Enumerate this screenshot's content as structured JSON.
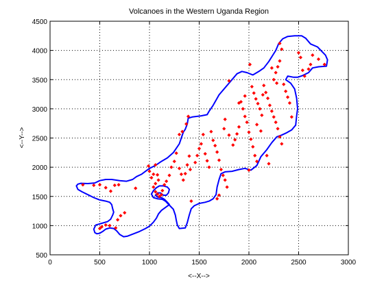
{
  "chart_data": {
    "type": "scatter",
    "title": "Volcanoes in the Western Uganda Region",
    "xlabel": "<--X-->",
    "ylabel": "<--Y-->",
    "xlim": [
      0,
      3000
    ],
    "ylim": [
      500,
      4500
    ],
    "xticks": [
      0,
      500,
      1000,
      1500,
      2000,
      2500,
      3000
    ],
    "yticks": [
      500,
      1000,
      1500,
      2000,
      2500,
      3000,
      3500,
      4000,
      4500
    ],
    "xtick_labels": [
      "0",
      "500",
      "1000",
      "1500",
      "2000",
      "2500",
      "3000"
    ],
    "ytick_labels": [
      "500",
      "1000",
      "1500",
      "2000",
      "2500",
      "3000",
      "3500",
      "4000",
      "4500"
    ],
    "grid": true,
    "colors": {
      "boundary": "#0000ff",
      "points": "#ff0000",
      "grid": "#000000"
    },
    "boundary": [
      [
        265,
        1680
      ],
      [
        280,
        1710
      ],
      [
        310,
        1725
      ],
      [
        380,
        1720
      ],
      [
        450,
        1730
      ],
      [
        500,
        1770
      ],
      [
        560,
        1790
      ],
      [
        620,
        1790
      ],
      [
        700,
        1770
      ],
      [
        770,
        1760
      ],
      [
        830,
        1790
      ],
      [
        870,
        1840
      ],
      [
        920,
        1880
      ],
      [
        960,
        1930
      ],
      [
        1000,
        1980
      ],
      [
        1060,
        2030
      ],
      [
        1120,
        2100
      ],
      [
        1180,
        2160
      ],
      [
        1240,
        2250
      ],
      [
        1300,
        2400
      ],
      [
        1340,
        2600
      ],
      [
        1360,
        2650
      ],
      [
        1380,
        2740
      ],
      [
        1390,
        2840
      ],
      [
        1430,
        2860
      ],
      [
        1520,
        2880
      ],
      [
        1580,
        2900
      ],
      [
        1600,
        2960
      ],
      [
        1640,
        3060
      ],
      [
        1700,
        3240
      ],
      [
        1760,
        3360
      ],
      [
        1820,
        3480
      ],
      [
        1880,
        3600
      ],
      [
        1930,
        3640
      ],
      [
        1980,
        3620
      ],
      [
        2040,
        3580
      ],
      [
        2100,
        3640
      ],
      [
        2150,
        3700
      ],
      [
        2200,
        3810
      ],
      [
        2270,
        4000
      ],
      [
        2300,
        4120
      ],
      [
        2340,
        4200
      ],
      [
        2390,
        4240
      ],
      [
        2460,
        4250
      ],
      [
        2530,
        4250
      ],
      [
        2570,
        4210
      ],
      [
        2620,
        4110
      ],
      [
        2690,
        4060
      ],
      [
        2770,
        3920
      ],
      [
        2790,
        3840
      ],
      [
        2780,
        3730
      ],
      [
        2700,
        3720
      ],
      [
        2640,
        3700
      ],
      [
        2600,
        3620
      ],
      [
        2540,
        3570
      ],
      [
        2490,
        3540
      ],
      [
        2450,
        3540
      ],
      [
        2390,
        3560
      ],
      [
        2370,
        3500
      ],
      [
        2420,
        3440
      ],
      [
        2460,
        3340
      ],
      [
        2480,
        3180
      ],
      [
        2490,
        3000
      ],
      [
        2480,
        2880
      ],
      [
        2470,
        2720
      ],
      [
        2430,
        2640
      ],
      [
        2380,
        2590
      ],
      [
        2330,
        2550
      ],
      [
        2280,
        2520
      ],
      [
        2230,
        2420
      ],
      [
        2180,
        2300
      ],
      [
        2120,
        2180
      ],
      [
        2080,
        2030
      ],
      [
        2020,
        1950
      ],
      [
        1960,
        1980
      ],
      [
        1900,
        1960
      ],
      [
        1830,
        1930
      ],
      [
        1760,
        1920
      ],
      [
        1720,
        1890
      ],
      [
        1700,
        1790
      ],
      [
        1680,
        1660
      ],
      [
        1670,
        1530
      ],
      [
        1640,
        1460
      ],
      [
        1600,
        1420
      ],
      [
        1560,
        1400
      ],
      [
        1500,
        1380
      ],
      [
        1450,
        1340
      ],
      [
        1420,
        1290
      ],
      [
        1400,
        1180
      ],
      [
        1380,
        1050
      ],
      [
        1360,
        960
      ],
      [
        1300,
        950
      ],
      [
        1280,
        1010
      ],
      [
        1270,
        1090
      ],
      [
        1260,
        1180
      ],
      [
        1240,
        1280
      ],
      [
        1200,
        1350
      ],
      [
        1160,
        1420
      ],
      [
        1130,
        1450
      ],
      [
        1080,
        1460
      ],
      [
        1040,
        1480
      ],
      [
        1020,
        1540
      ],
      [
        1040,
        1600
      ],
      [
        1070,
        1650
      ],
      [
        1100,
        1680
      ],
      [
        1140,
        1680
      ],
      [
        1180,
        1660
      ],
      [
        1200,
        1620
      ],
      [
        1190,
        1560
      ],
      [
        1170,
        1520
      ],
      [
        1140,
        1520
      ],
      [
        1110,
        1560
      ],
      [
        1080,
        1560
      ],
      [
        1060,
        1520
      ],
      [
        1080,
        1490
      ],
      [
        1120,
        1480
      ],
      [
        1150,
        1450
      ],
      [
        1180,
        1400
      ],
      [
        1200,
        1360
      ],
      [
        1160,
        1310
      ],
      [
        1120,
        1260
      ],
      [
        1090,
        1200
      ],
      [
        1070,
        1130
      ],
      [
        1040,
        1060
      ],
      [
        1000,
        990
      ],
      [
        960,
        950
      ],
      [
        900,
        900
      ],
      [
        840,
        860
      ],
      [
        780,
        820
      ],
      [
        740,
        810
      ],
      [
        700,
        850
      ],
      [
        670,
        910
      ],
      [
        640,
        950
      ],
      [
        600,
        960
      ],
      [
        560,
        940
      ],
      [
        530,
        900
      ],
      [
        500,
        870
      ],
      [
        470,
        860
      ],
      [
        450,
        880
      ],
      [
        440,
        940
      ],
      [
        460,
        1010
      ],
      [
        480,
        1020
      ],
      [
        520,
        1040
      ],
      [
        580,
        1070
      ],
      [
        610,
        1110
      ],
      [
        630,
        1180
      ],
      [
        640,
        1230
      ],
      [
        630,
        1290
      ],
      [
        620,
        1360
      ],
      [
        600,
        1400
      ],
      [
        560,
        1420
      ],
      [
        500,
        1440
      ],
      [
        440,
        1480
      ],
      [
        380,
        1530
      ],
      [
        320,
        1580
      ],
      [
        280,
        1620
      ],
      [
        265,
        1680
      ]
    ],
    "points": [
      [
        330,
        1700
      ],
      [
        440,
        1690
      ],
      [
        500,
        1700
      ],
      [
        560,
        1650
      ],
      [
        610,
        1590
      ],
      [
        650,
        1690
      ],
      [
        690,
        1700
      ],
      [
        860,
        1640
      ],
      [
        750,
        1220
      ],
      [
        710,
        1170
      ],
      [
        680,
        1100
      ],
      [
        600,
        1000
      ],
      [
        560,
        1010
      ],
      [
        520,
        980
      ],
      [
        500,
        950
      ],
      [
        660,
        960
      ],
      [
        990,
        2020
      ],
      [
        1000,
        1930
      ],
      [
        1020,
        1820
      ],
      [
        1040,
        1880
      ],
      [
        1060,
        2040
      ],
      [
        1080,
        1870
      ],
      [
        1090,
        1780
      ],
      [
        1060,
        1720
      ],
      [
        1040,
        1660
      ],
      [
        1060,
        1580
      ],
      [
        1080,
        1540
      ],
      [
        1100,
        1500
      ],
      [
        1120,
        1530
      ],
      [
        1130,
        1600
      ],
      [
        1150,
        1700
      ],
      [
        1170,
        1760
      ],
      [
        1200,
        1860
      ],
      [
        1220,
        2000
      ],
      [
        1250,
        2100
      ],
      [
        1270,
        2240
      ],
      [
        1300,
        1980
      ],
      [
        1320,
        1880
      ],
      [
        1340,
        1780
      ],
      [
        1360,
        1890
      ],
      [
        1380,
        2040
      ],
      [
        1400,
        2190
      ],
      [
        1410,
        1960
      ],
      [
        1300,
        2560
      ],
      [
        1330,
        2610
      ],
      [
        1370,
        2740
      ],
      [
        1390,
        2870
      ],
      [
        1420,
        1420
      ],
      [
        1460,
        2080
      ],
      [
        1480,
        2200
      ],
      [
        1500,
        2320
      ],
      [
        1520,
        2400
      ],
      [
        1540,
        2560
      ],
      [
        1560,
        2230
      ],
      [
        1580,
        2110
      ],
      [
        1600,
        2000
      ],
      [
        1620,
        2610
      ],
      [
        1640,
        2460
      ],
      [
        1660,
        2370
      ],
      [
        1680,
        2260
      ],
      [
        1700,
        2120
      ],
      [
        1720,
        1960
      ],
      [
        1740,
        1860
      ],
      [
        1760,
        1780
      ],
      [
        1780,
        1660
      ],
      [
        1700,
        1520
      ],
      [
        1680,
        1460
      ],
      [
        1750,
        2660
      ],
      [
        1760,
        2820
      ],
      [
        1800,
        3480
      ],
      [
        1800,
        2550
      ],
      [
        1840,
        2380
      ],
      [
        1860,
        2470
      ],
      [
        1880,
        2570
      ],
      [
        1900,
        2690
      ],
      [
        1920,
        3120
      ],
      [
        1940,
        3000
      ],
      [
        1960,
        2870
      ],
      [
        1980,
        2770
      ],
      [
        2000,
        2600
      ],
      [
        2020,
        2480
      ],
      [
        2040,
        2350
      ],
      [
        2060,
        2200
      ],
      [
        2080,
        2100
      ],
      [
        2000,
        1950
      ],
      [
        2010,
        3760
      ],
      [
        2030,
        3380
      ],
      [
        2050,
        3270
      ],
      [
        2070,
        3170
      ],
      [
        2090,
        3090
      ],
      [
        2110,
        3000
      ],
      [
        2130,
        2890
      ],
      [
        2150,
        3400
      ],
      [
        2170,
        3280
      ],
      [
        2190,
        3180
      ],
      [
        2210,
        3060
      ],
      [
        2230,
        2960
      ],
      [
        2250,
        2860
      ],
      [
        2270,
        2770
      ],
      [
        2290,
        2660
      ],
      [
        2310,
        2520
      ],
      [
        2330,
        2400
      ],
      [
        2250,
        3500
      ],
      [
        2270,
        3620
      ],
      [
        2290,
        3720
      ],
      [
        2310,
        3820
      ],
      [
        2330,
        4020
      ],
      [
        2310,
        4120
      ],
      [
        2350,
        3420
      ],
      [
        2370,
        3300
      ],
      [
        2390,
        3200
      ],
      [
        2410,
        3100
      ],
      [
        2430,
        2860
      ],
      [
        2500,
        3960
      ],
      [
        2520,
        3880
      ],
      [
        2540,
        3660
      ],
      [
        2560,
        3560
      ],
      [
        2600,
        3680
      ],
      [
        2620,
        3760
      ],
      [
        2640,
        3920
      ],
      [
        2700,
        3850
      ],
      [
        2760,
        3760
      ],
      [
        2230,
        3700
      ],
      [
        2280,
        3440
      ],
      [
        2140,
        3240
      ],
      [
        2180,
        2200
      ],
      [
        2200,
        2060
      ],
      [
        2120,
        2620
      ],
      [
        2080,
        2730
      ],
      [
        1900,
        3100
      ],
      [
        1960,
        3220
      ]
    ]
  }
}
